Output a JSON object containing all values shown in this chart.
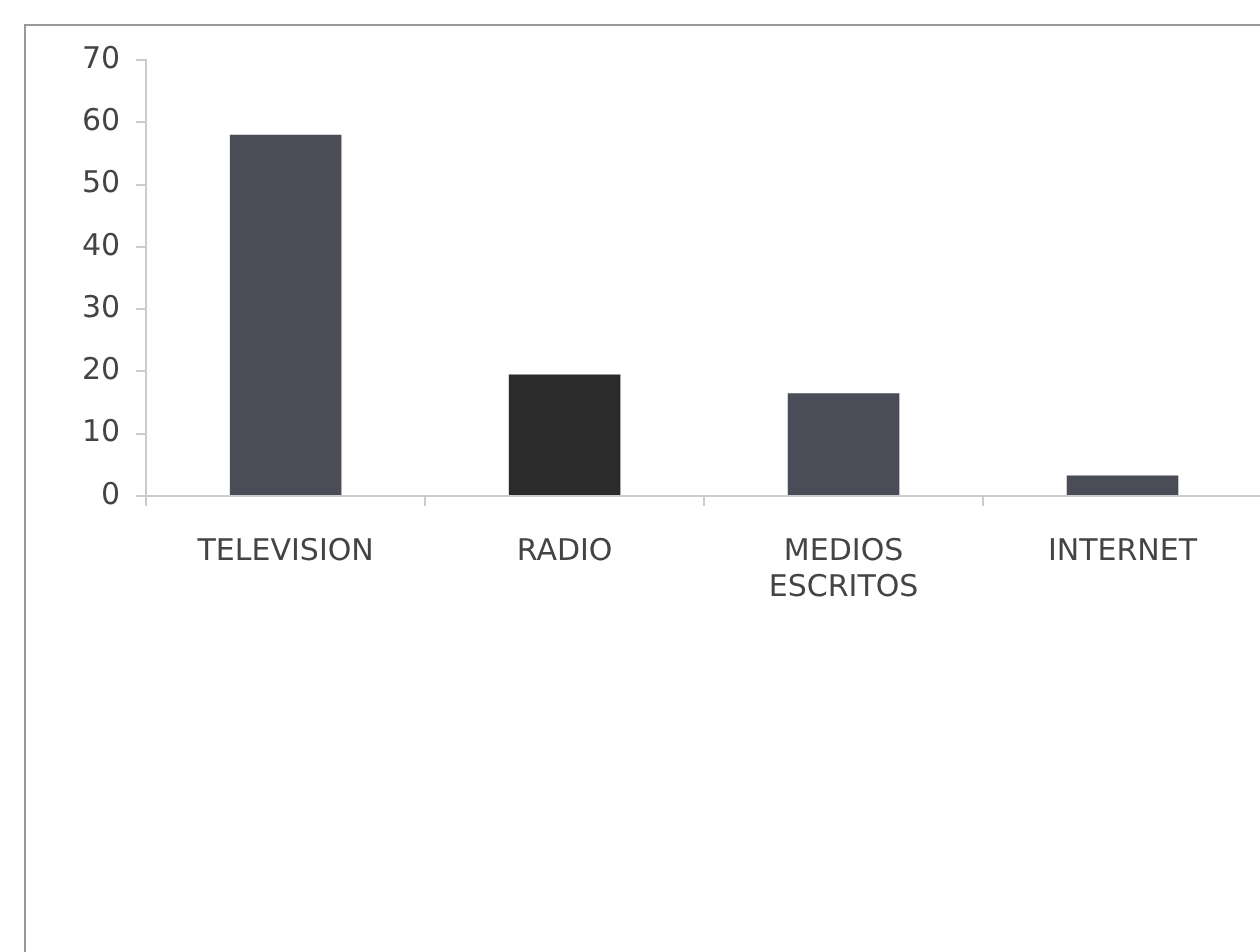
{
  "chart_data": {
    "type": "bar",
    "categories": [
      "TELEVISION",
      "RADIO",
      "MEDIOS ESCRITOS",
      "INTERNET"
    ],
    "values": [
      58,
      19.5,
      16.5,
      3.3
    ],
    "colors": [
      "#4a4d57",
      "#2b2b2b",
      "#4a4d57",
      "#4a4d57"
    ],
    "ylim": [
      0,
      70
    ],
    "yticks": [
      0,
      10,
      20,
      30,
      40,
      50,
      60,
      70
    ],
    "grid": false,
    "legend": false
  }
}
